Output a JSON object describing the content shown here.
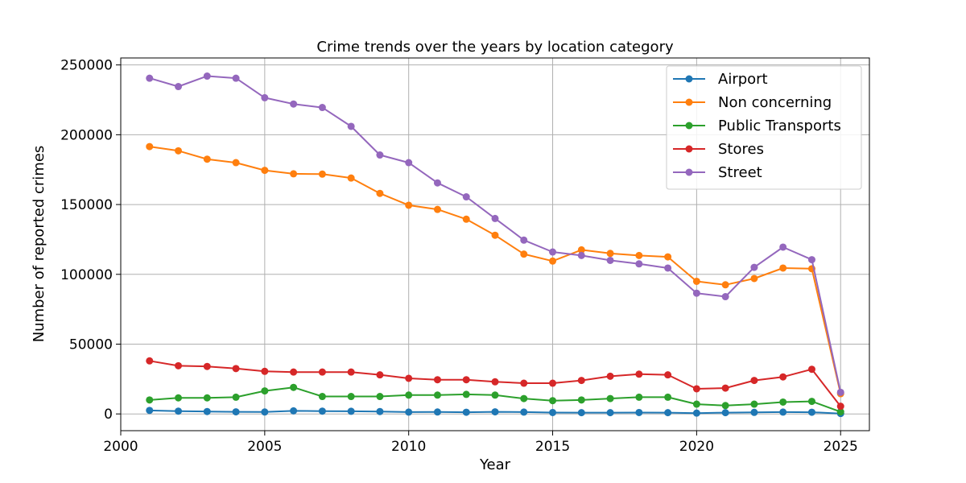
{
  "chart_data": {
    "type": "line",
    "title": "Crime trends over the years by location category",
    "xlabel": "Year",
    "ylabel": "Number of reported crimes",
    "xlim": [
      2000,
      2026
    ],
    "ylim": [
      -12000,
      255000
    ],
    "x_ticks": [
      2000,
      2005,
      2010,
      2015,
      2020,
      2025
    ],
    "y_ticks": [
      0,
      50000,
      100000,
      150000,
      200000,
      250000
    ],
    "grid": true,
    "legend_position": "top-right",
    "x": [
      2001,
      2002,
      2003,
      2004,
      2005,
      2006,
      2007,
      2008,
      2009,
      2010,
      2011,
      2012,
      2013,
      2014,
      2015,
      2016,
      2017,
      2018,
      2019,
      2020,
      2021,
      2022,
      2023,
      2024,
      2025
    ],
    "series": [
      {
        "name": "Airport",
        "color": "#1f77b4",
        "values": [
          2500,
          2000,
          1700,
          1500,
          1400,
          2200,
          2000,
          1900,
          1700,
          1300,
          1400,
          1200,
          1500,
          1300,
          1000,
          900,
          900,
          1000,
          900,
          600,
          900,
          1100,
          1300,
          1200,
          300
        ]
      },
      {
        "name": "Non concerning",
        "color": "#ff7f0e",
        "values": [
          191500,
          188500,
          182500,
          180000,
          174500,
          172000,
          171800,
          169000,
          158000,
          149500,
          146500,
          139500,
          128000,
          114500,
          109500,
          117500,
          115000,
          113500,
          112500,
          95000,
          92500,
          97000,
          104500,
          104000,
          14500
        ]
      },
      {
        "name": "Public Transports",
        "color": "#2ca02c",
        "values": [
          10000,
          11500,
          11500,
          12000,
          16500,
          19000,
          12500,
          12500,
          12500,
          13500,
          13500,
          14000,
          13500,
          11000,
          9500,
          10000,
          11000,
          12000,
          12000,
          7000,
          6000,
          7000,
          8500,
          9000,
          1500
        ]
      },
      {
        "name": "Stores",
        "color": "#d62728",
        "values": [
          38000,
          34500,
          34000,
          32500,
          30500,
          30000,
          30000,
          30000,
          28000,
          25500,
          24500,
          24500,
          23000,
          22000,
          22000,
          24000,
          27000,
          28500,
          28000,
          18000,
          18500,
          24000,
          26500,
          32000,
          5500
        ]
      },
      {
        "name": "Street",
        "color": "#9467bd",
        "values": [
          240500,
          234500,
          242000,
          240500,
          226500,
          222000,
          219500,
          206000,
          185500,
          180000,
          165500,
          155500,
          140000,
          124500,
          116000,
          113500,
          110000,
          107500,
          104500,
          86500,
          84000,
          105000,
          119500,
          110500,
          15500
        ]
      }
    ]
  }
}
